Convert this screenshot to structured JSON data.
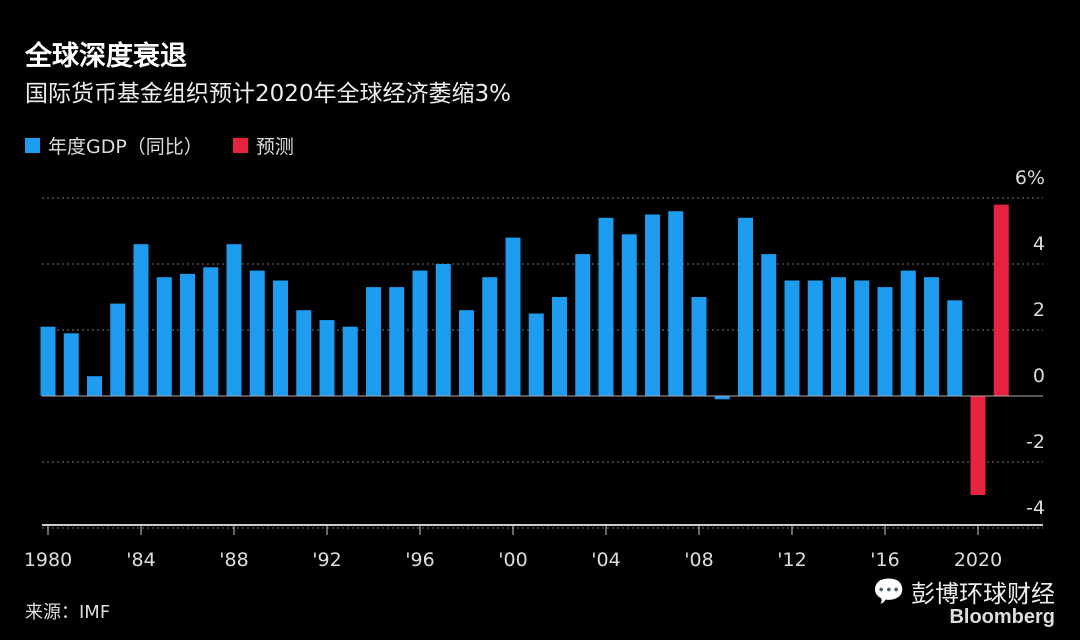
{
  "chart_data": {
    "type": "bar",
    "title": "全球深度衰退",
    "subtitle": "国际货币基金组织预计2020年全球经济萎缩3%",
    "legend": [
      {
        "name": "年度GDP（同比）",
        "color": "#1e9cf0"
      },
      {
        "name": "预测",
        "color": "#e8233f"
      }
    ],
    "legend_placement": "top-left",
    "x": [
      1980,
      1981,
      1982,
      1983,
      1984,
      1985,
      1986,
      1987,
      1988,
      1989,
      1990,
      1991,
      1992,
      1993,
      1994,
      1995,
      1996,
      1997,
      1998,
      1999,
      2000,
      2001,
      2002,
      2003,
      2004,
      2005,
      2006,
      2007,
      2008,
      2009,
      2010,
      2011,
      2012,
      2013,
      2014,
      2015,
      2016,
      2017,
      2018,
      2019,
      2020,
      2021
    ],
    "values": [
      2.1,
      1.9,
      0.6,
      2.8,
      4.6,
      3.6,
      3.7,
      3.9,
      4.6,
      3.8,
      3.5,
      2.6,
      2.3,
      2.1,
      3.3,
      3.3,
      3.8,
      4.0,
      2.6,
      3.6,
      4.8,
      2.5,
      3.0,
      4.3,
      5.4,
      4.9,
      5.5,
      5.6,
      3.0,
      -0.1,
      5.4,
      4.3,
      3.5,
      3.5,
      3.6,
      3.5,
      3.3,
      3.8,
      3.6,
      2.9,
      -3.0,
      5.8
    ],
    "forecast_from": 2020,
    "x_tick_labels": [
      "1980",
      "'84",
      "'88",
      "'92",
      "'96",
      "'00",
      "'04",
      "'08",
      "'12",
      "'16",
      "2020"
    ],
    "y_tick_labels": [
      "6%",
      "4",
      "2",
      "0",
      "-2",
      "-4"
    ],
    "y_ticks": [
      6,
      4,
      2,
      0,
      -2,
      -4
    ],
    "ylim": [
      -4,
      6
    ],
    "grid": "dotted horizontal",
    "y_axis_side": "right"
  },
  "source": "来源：IMF",
  "watermark": "彭博环球财经",
  "brand": "Bloomberg"
}
